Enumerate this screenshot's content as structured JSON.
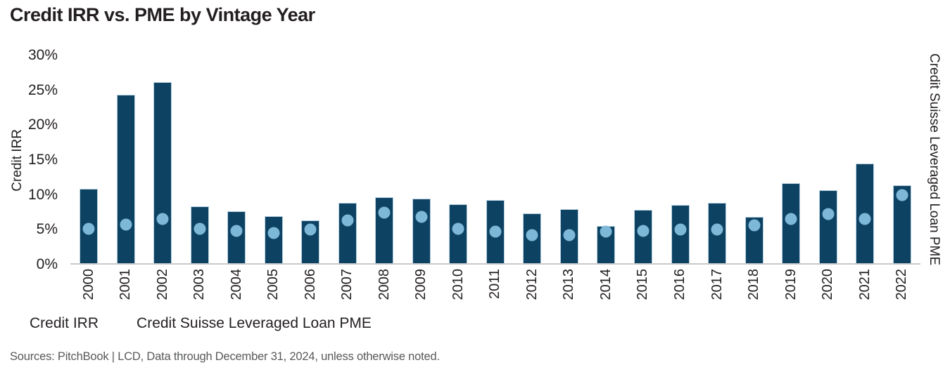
{
  "chart_data": {
    "type": "bar",
    "title": "Credit IRR vs. PME by Vintage Year",
    "categories": [
      "2000",
      "2001",
      "2002",
      "2003",
      "2004",
      "2005",
      "2006",
      "2007",
      "2008",
      "2009",
      "2010",
      "2011",
      "2012",
      "2013",
      "2014",
      "2015",
      "2016",
      "2017",
      "2018",
      "2019",
      "2020",
      "2021",
      "2022"
    ],
    "series": [
      {
        "name": "Credit IRR",
        "type": "bar",
        "color": "#0d4263",
        "values": [
          10.7,
          24.3,
          26.2,
          8.2,
          7.5,
          6.8,
          6.2,
          8.7,
          9.5,
          9.3,
          8.5,
          9.1,
          7.2,
          7.8,
          5.4,
          7.7,
          8.4,
          8.7,
          6.7,
          11.6,
          10.5,
          14.4,
          11.3
        ]
      },
      {
        "name": "Credit Suisse Leveraged Loan PME",
        "type": "scatter",
        "color": "#7db8d8",
        "values": [
          5.0,
          5.6,
          6.4,
          5.0,
          4.7,
          4.4,
          4.9,
          6.2,
          7.3,
          6.7,
          5.0,
          4.6,
          4.1,
          4.1,
          4.6,
          4.7,
          4.9,
          4.9,
          5.5,
          6.4,
          7.1,
          6.4,
          9.8
        ]
      }
    ],
    "xlabel": "",
    "ylabel_left": "Credit IRR",
    "ylabel_right": "Credit Suisse Leveraged Loan PME",
    "ylim": [
      0,
      30
    ],
    "ytick_step": 5,
    "yticks_labels": [
      "0%",
      "5%",
      "10%",
      "15%",
      "20%",
      "25%",
      "30%"
    ],
    "grid": false,
    "legend_position": "bottom-left"
  },
  "colors": {
    "bar": "#0d4263",
    "dot": "#7db8d8",
    "axis_line": "#c9c9c9",
    "text": "#231f20",
    "source_text": "#58595b"
  },
  "footer": {
    "source": "Sources: PitchBook | LCD, Data through December 31, 2024, unless otherwise noted."
  }
}
